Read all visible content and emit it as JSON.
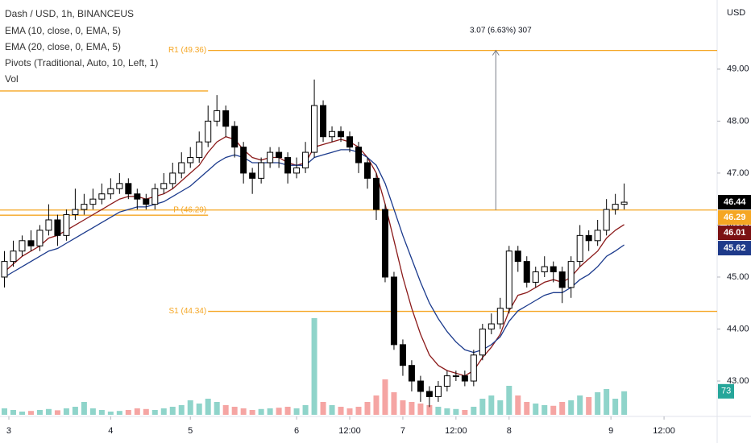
{
  "chart_data": {
    "type": "candlestick",
    "title": "Dash / USD, 1h, BINANCEUS",
    "indicators": [
      "EMA (10, close, 0, EMA, 5)",
      "EMA (20, close, 0, EMA, 5)",
      "Pivots (Traditional, Auto, 10, Left, 1)",
      "Vol"
    ],
    "currency": "USD",
    "xlim": [
      -2,
      160
    ],
    "ylim": [
      42.35,
      50.33
    ],
    "xticks": [
      {
        "value": 0,
        "label": "3"
      },
      {
        "value": 23,
        "label": "4"
      },
      {
        "value": 41,
        "label": "5"
      },
      {
        "value": 65,
        "label": "6"
      },
      {
        "value": 77,
        "label": "12:00"
      },
      {
        "value": 89,
        "label": "7"
      },
      {
        "value": 101,
        "label": "12:00"
      },
      {
        "value": 113,
        "label": "8"
      },
      {
        "value": 136,
        "label": "9"
      },
      {
        "value": 148,
        "label": "12:00"
      }
    ],
    "yticks": [
      {
        "value": 43,
        "label": "43.00"
      },
      {
        "value": 44,
        "label": "44.00"
      },
      {
        "value": 45,
        "label": "45.00"
      },
      {
        "value": 46,
        "label": "46.00"
      },
      {
        "value": 47,
        "label": "47.00"
      },
      {
        "value": 48,
        "label": "48.00"
      },
      {
        "value": 49,
        "label": "49.00"
      }
    ],
    "up_color": "#ffffff",
    "down_color": "#000000",
    "vol_up_color": "#8fd4ca",
    "vol_down_color": "#f5a5a3",
    "vol_lim": [
      0,
      350
    ],
    "x": [
      -1,
      1,
      3,
      5,
      7,
      9,
      11,
      13,
      15,
      17,
      19,
      21,
      23,
      25,
      27,
      29,
      31,
      33,
      35,
      37,
      39,
      41,
      43,
      45,
      47,
      49,
      51,
      53,
      55,
      57,
      59,
      61,
      63,
      65,
      67,
      69,
      71,
      73,
      75,
      77,
      79,
      81,
      83,
      85,
      87,
      89,
      91,
      93,
      95,
      97,
      99,
      101,
      103,
      105,
      107,
      109,
      111,
      113,
      115,
      117,
      119,
      121,
      123,
      125,
      127,
      129,
      131,
      133,
      135,
      137,
      139
    ],
    "open": [
      45.0,
      45.3,
      45.5,
      45.7,
      45.6,
      45.9,
      46.1,
      45.8,
      46.2,
      46.3,
      46.4,
      46.5,
      46.6,
      46.7,
      46.8,
      46.6,
      46.5,
      46.4,
      46.7,
      46.8,
      47.0,
      47.2,
      47.3,
      47.6,
      48.0,
      48.2,
      47.9,
      47.5,
      47.0,
      46.9,
      47.2,
      47.4,
      47.3,
      47.0,
      47.1,
      47.4,
      48.3,
      47.7,
      47.8,
      47.7,
      47.5,
      47.2,
      46.9,
      46.3,
      45.0,
      43.7,
      43.3,
      43.0,
      42.8,
      42.7,
      42.9,
      43.1,
      43.1,
      43.0,
      43.5,
      44.0,
      44.1,
      44.4,
      45.5,
      45.3,
      44.9,
      45.1,
      45.2,
      45.1,
      44.8,
      45.3,
      45.8,
      45.7,
      45.9,
      46.3,
      46.4
    ],
    "high": [
      45.5,
      45.7,
      45.8,
      45.9,
      46.0,
      46.4,
      46.2,
      46.3,
      46.7,
      46.6,
      46.7,
      46.8,
      46.9,
      47.0,
      46.9,
      46.7,
      46.6,
      46.8,
      47.0,
      47.2,
      47.4,
      47.5,
      47.8,
      48.3,
      48.5,
      48.3,
      48.0,
      47.6,
      47.1,
      47.3,
      47.5,
      47.5,
      47.4,
      47.3,
      47.6,
      48.8,
      48.4,
      47.9,
      47.9,
      47.8,
      47.6,
      47.3,
      47.0,
      46.4,
      45.1,
      43.8,
      43.4,
      43.1,
      42.9,
      43.0,
      43.2,
      43.2,
      43.2,
      43.6,
      44.1,
      44.3,
      44.6,
      45.6,
      45.6,
      45.4,
      45.2,
      45.4,
      45.3,
      45.2,
      45.4,
      46.0,
      45.9,
      46.1,
      46.5,
      46.6,
      46.8
    ],
    "low": [
      44.8,
      45.2,
      45.4,
      45.5,
      45.5,
      45.8,
      45.6,
      45.7,
      46.1,
      46.2,
      46.3,
      46.4,
      46.5,
      46.6,
      46.5,
      46.3,
      46.3,
      46.3,
      46.6,
      46.7,
      46.9,
      47.1,
      47.2,
      47.5,
      47.9,
      47.7,
      47.3,
      46.8,
      46.6,
      46.8,
      47.1,
      47.1,
      46.8,
      46.9,
      47.0,
      47.3,
      47.6,
      47.6,
      47.6,
      47.4,
      47.0,
      46.7,
      46.1,
      44.9,
      43.6,
      43.1,
      42.8,
      42.6,
      42.5,
      42.6,
      42.8,
      43.0,
      42.9,
      42.9,
      43.4,
      43.9,
      44.0,
      44.3,
      45.1,
      44.8,
      44.8,
      45.0,
      44.9,
      44.5,
      44.6,
      45.2,
      45.5,
      45.6,
      45.8,
      46.2,
      46.3
    ],
    "close": [
      45.3,
      45.5,
      45.7,
      45.6,
      45.9,
      46.1,
      45.8,
      46.2,
      46.3,
      46.4,
      46.5,
      46.6,
      46.7,
      46.8,
      46.6,
      46.5,
      46.4,
      46.7,
      46.8,
      47.0,
      47.2,
      47.3,
      47.6,
      48.0,
      48.2,
      47.9,
      47.5,
      47.0,
      46.9,
      47.2,
      47.4,
      47.3,
      47.0,
      47.1,
      47.4,
      48.3,
      47.7,
      47.8,
      47.7,
      47.5,
      47.2,
      46.9,
      46.3,
      45.0,
      43.7,
      43.3,
      43.0,
      42.8,
      42.7,
      42.9,
      43.1,
      43.1,
      43.0,
      43.5,
      44.0,
      44.1,
      44.4,
      45.5,
      45.3,
      44.9,
      45.1,
      45.2,
      45.1,
      44.8,
      45.3,
      45.8,
      45.7,
      45.9,
      46.3,
      46.4,
      46.44
    ],
    "volume": [
      20,
      15,
      10,
      12,
      15,
      18,
      14,
      20,
      25,
      40,
      20,
      15,
      10,
      12,
      15,
      20,
      18,
      15,
      20,
      25,
      30,
      45,
      35,
      50,
      40,
      30,
      25,
      20,
      15,
      18,
      20,
      22,
      25,
      20,
      30,
      300,
      40,
      30,
      25,
      20,
      25,
      40,
      60,
      110,
      70,
      45,
      40,
      35,
      30,
      25,
      20,
      18,
      15,
      25,
      50,
      60,
      45,
      90,
      60,
      40,
      35,
      30,
      28,
      40,
      45,
      60,
      55,
      70,
      80,
      50,
      73
    ],
    "ema10": {
      "color": "#8b1a1a",
      "label_color": "#7b1113",
      "values": [
        45.1,
        45.25,
        45.4,
        45.5,
        45.6,
        45.75,
        45.8,
        45.9,
        46.0,
        46.1,
        46.2,
        46.3,
        46.4,
        46.5,
        46.55,
        46.55,
        46.5,
        46.55,
        46.6,
        46.7,
        46.85,
        47.0,
        47.15,
        47.4,
        47.6,
        47.7,
        47.65,
        47.45,
        47.3,
        47.25,
        47.3,
        47.3,
        47.2,
        47.15,
        47.2,
        47.5,
        47.55,
        47.6,
        47.65,
        47.6,
        47.5,
        47.3,
        47.0,
        46.4,
        45.7,
        45.0,
        44.4,
        43.9,
        43.5,
        43.3,
        43.2,
        43.15,
        43.1,
        43.2,
        43.45,
        43.65,
        43.9,
        44.35,
        44.65,
        44.7,
        44.8,
        44.9,
        44.95,
        44.9,
        45.0,
        45.2,
        45.35,
        45.5,
        45.75,
        45.9,
        46.01
      ]
    },
    "ema20": {
      "color": "#1b3a8c",
      "label_color": "#1e3a8a",
      "values": [
        45.0,
        45.1,
        45.2,
        45.3,
        45.4,
        45.5,
        45.55,
        45.65,
        45.75,
        45.85,
        45.95,
        46.05,
        46.15,
        46.25,
        46.3,
        46.35,
        46.35,
        46.4,
        46.45,
        46.55,
        46.65,
        46.75,
        46.9,
        47.05,
        47.2,
        47.3,
        47.35,
        47.3,
        47.2,
        47.2,
        47.2,
        47.2,
        47.15,
        47.15,
        47.15,
        47.3,
        47.35,
        47.4,
        47.45,
        47.45,
        47.4,
        47.3,
        47.15,
        46.8,
        46.3,
        45.8,
        45.35,
        44.9,
        44.5,
        44.2,
        43.95,
        43.75,
        43.6,
        43.55,
        43.6,
        43.7,
        43.85,
        44.15,
        44.35,
        44.45,
        44.55,
        44.65,
        44.7,
        44.7,
        44.8,
        44.95,
        45.05,
        45.2,
        45.4,
        45.5,
        45.62
      ]
    },
    "pivot_color": "#f5a623",
    "pivots": [
      {
        "label": "R1 (49.36)",
        "value": 49.36,
        "from": 45
      },
      {
        "label": "P (46.29)",
        "value": 46.29,
        "from": -2
      },
      {
        "label": "S1 (44.34)",
        "value": 44.34,
        "from": 45
      }
    ],
    "prev_pivots": [
      48.58,
      46.19
    ],
    "measure": {
      "label": "3.07 (6.63%) 307",
      "x": 110,
      "from": 46.29,
      "to": 49.36
    }
  }
}
